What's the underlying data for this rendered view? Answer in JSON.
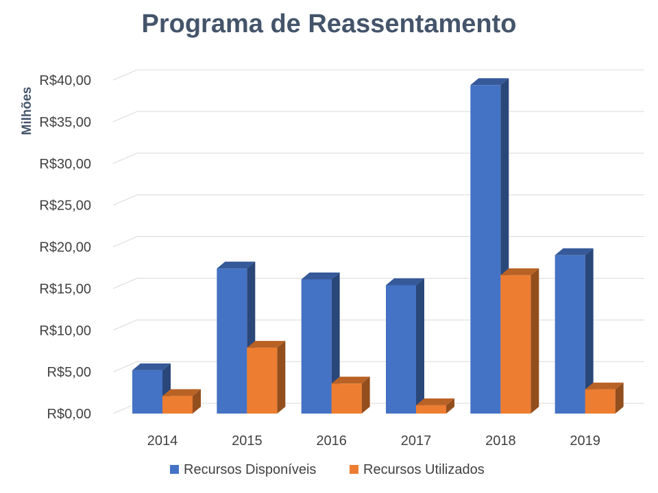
{
  "chart_data": {
    "type": "bar",
    "title": "Programa de Reassentamento",
    "xlabel": "",
    "ylabel": "Milhões",
    "categories": [
      "2014",
      "2015",
      "2016",
      "2017",
      "2018",
      "2019"
    ],
    "series": [
      {
        "name": "Recursos Disponíveis",
        "color": "#4472c4",
        "values": [
          5.2,
          17.4,
          16.1,
          15.4,
          39.4,
          19.0
        ]
      },
      {
        "name": "Recursos Utilizados",
        "color": "#ed7d31",
        "values": [
          2.1,
          7.9,
          3.6,
          1.0,
          16.6,
          2.9
        ]
      }
    ],
    "ylim": [
      0,
      40
    ],
    "yticks": [
      0,
      5,
      10,
      15,
      20,
      25,
      30,
      35,
      40
    ],
    "ytick_labels": [
      "R$0,00",
      "R$5,00",
      "R$10,00",
      "R$15,00",
      "R$20,00",
      "R$25,00",
      "R$30,00",
      "R$35,00",
      "R$40,00"
    ],
    "grid": true,
    "legend": "bottom"
  }
}
